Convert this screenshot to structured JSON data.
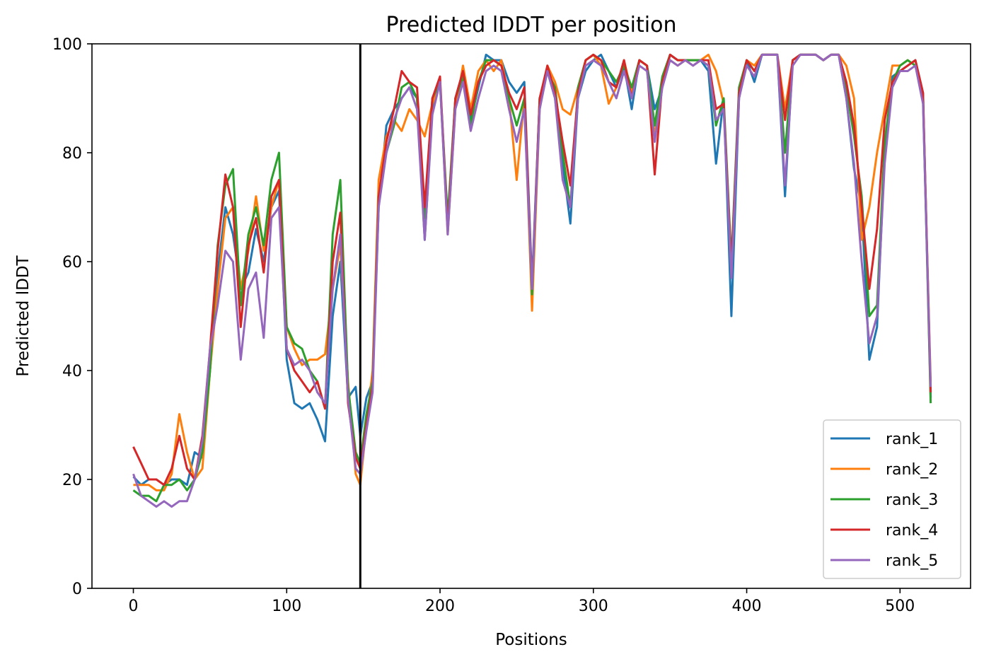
{
  "chart_data": {
    "type": "line",
    "title": "Predicted lDDT per position",
    "xlabel": "Positions",
    "ylabel": "Predicted lDDT",
    "xlim": [
      -27,
      546
    ],
    "ylim": [
      0,
      100
    ],
    "xticks": [
      0,
      100,
      200,
      300,
      400,
      500
    ],
    "yticks": [
      0,
      20,
      40,
      60,
      80,
      100
    ],
    "vline": 148,
    "legend_loc": "lower-right",
    "grid": false,
    "series": [
      {
        "name": "rank_1",
        "color": "#1f77b4",
        "x": [
          0,
          5,
          10,
          15,
          20,
          25,
          30,
          35,
          40,
          45,
          50,
          55,
          60,
          65,
          70,
          75,
          80,
          85,
          90,
          95,
          100,
          105,
          110,
          115,
          120,
          125,
          130,
          135,
          140,
          145,
          148,
          152,
          156,
          160,
          165,
          170,
          175,
          180,
          185,
          190,
          195,
          200,
          205,
          210,
          215,
          220,
          225,
          230,
          235,
          240,
          245,
          250,
          255,
          260,
          265,
          270,
          275,
          280,
          285,
          290,
          295,
          300,
          305,
          310,
          315,
          320,
          325,
          330,
          335,
          340,
          345,
          350,
          355,
          360,
          365,
          370,
          375,
          380,
          385,
          390,
          395,
          400,
          405,
          410,
          415,
          420,
          425,
          430,
          435,
          440,
          445,
          450,
          455,
          460,
          465,
          470,
          475,
          480,
          485,
          490,
          495,
          500,
          505,
          510,
          515,
          520
        ],
        "values": [
          20.5,
          19,
          20,
          20,
          19,
          20,
          20,
          19,
          25,
          24,
          40,
          58,
          70,
          65,
          55,
          58,
          66,
          60,
          70,
          73,
          42,
          34,
          33,
          34,
          31,
          27,
          50,
          60,
          35,
          37,
          28,
          35,
          38,
          70,
          85,
          88,
          90,
          92,
          90,
          64,
          88,
          93,
          66,
          90,
          95,
          86,
          92,
          98,
          97,
          97,
          93,
          91,
          93,
          56,
          90,
          95,
          90,
          78,
          67,
          90,
          95,
          97,
          98,
          95,
          92,
          96,
          88,
          97,
          96,
          88,
          92,
          98,
          97,
          97,
          97,
          97,
          95,
          78,
          90,
          50,
          90,
          97,
          93,
          98,
          98,
          98,
          72,
          97,
          98,
          98,
          98,
          97,
          98,
          98,
          90,
          77,
          70,
          42,
          48,
          80,
          94,
          95,
          96,
          97,
          91,
          35
        ]
      },
      {
        "name": "rank_2",
        "color": "#ff7f0e",
        "x": [
          0,
          5,
          10,
          15,
          20,
          25,
          30,
          35,
          40,
          45,
          50,
          55,
          60,
          65,
          70,
          75,
          80,
          85,
          90,
          95,
          100,
          105,
          110,
          115,
          120,
          125,
          130,
          135,
          140,
          145,
          148,
          152,
          156,
          160,
          165,
          170,
          175,
          180,
          185,
          190,
          195,
          200,
          205,
          210,
          215,
          220,
          225,
          230,
          235,
          240,
          245,
          250,
          255,
          260,
          265,
          270,
          275,
          280,
          285,
          290,
          295,
          300,
          305,
          310,
          315,
          320,
          325,
          330,
          335,
          340,
          345,
          350,
          355,
          360,
          365,
          370,
          375,
          380,
          385,
          390,
          395,
          400,
          405,
          410,
          415,
          420,
          425,
          430,
          435,
          440,
          445,
          450,
          455,
          460,
          465,
          470,
          475,
          480,
          485,
          490,
          495,
          500,
          505,
          510,
          515,
          520
        ],
        "values": [
          19,
          19,
          19,
          18,
          18,
          21,
          32,
          25,
          20,
          22,
          40,
          55,
          68,
          70,
          55,
          62,
          72,
          62,
          70,
          75,
          48,
          44,
          41,
          42,
          42,
          43,
          55,
          63,
          38,
          21,
          19,
          30,
          40,
          75,
          83,
          86,
          84,
          88,
          86,
          83,
          89,
          93,
          65,
          88,
          96,
          88,
          95,
          97,
          95,
          97,
          90,
          75,
          90,
          51,
          88,
          96,
          93,
          88,
          87,
          92,
          97,
          98,
          96,
          89,
          92,
          97,
          91,
          97,
          96,
          83,
          93,
          97,
          96,
          97,
          97,
          97,
          98,
          95,
          89,
          58,
          90,
          97,
          96,
          98,
          98,
          98,
          88,
          97,
          98,
          98,
          98,
          97,
          98,
          98,
          96,
          90,
          64,
          70,
          80,
          88,
          96,
          96,
          97,
          96,
          90,
          38
        ]
      },
      {
        "name": "rank_3",
        "color": "#2ca02c",
        "x": [
          0,
          5,
          10,
          15,
          20,
          25,
          30,
          35,
          40,
          45,
          50,
          55,
          60,
          65,
          70,
          75,
          80,
          85,
          90,
          95,
          100,
          105,
          110,
          115,
          120,
          125,
          130,
          135,
          140,
          145,
          148,
          152,
          156,
          160,
          165,
          170,
          175,
          180,
          185,
          190,
          195,
          200,
          205,
          210,
          215,
          220,
          225,
          230,
          235,
          240,
          245,
          250,
          255,
          260,
          265,
          270,
          275,
          280,
          285,
          290,
          295,
          300,
          305,
          310,
          315,
          320,
          325,
          330,
          335,
          340,
          345,
          350,
          355,
          360,
          365,
          370,
          375,
          380,
          385,
          390,
          395,
          400,
          405,
          410,
          415,
          420,
          425,
          430,
          435,
          440,
          445,
          450,
          455,
          460,
          465,
          470,
          475,
          480,
          485,
          490,
          495,
          500,
          505,
          510,
          515,
          520
        ],
        "values": [
          18,
          17,
          17,
          16,
          19,
          19,
          20,
          18,
          20,
          25,
          40,
          63,
          74,
          77,
          52,
          65,
          70,
          63,
          75,
          80,
          48,
          45,
          44,
          40,
          38,
          33,
          65,
          75,
          37,
          25,
          23,
          32,
          38,
          72,
          80,
          85,
          92,
          93,
          90,
          68,
          90,
          93,
          68,
          90,
          94,
          85,
          93,
          97,
          97,
          96,
          90,
          85,
          90,
          54,
          90,
          95,
          92,
          80,
          70,
          92,
          97,
          98,
          97,
          95,
          93,
          96,
          92,
          97,
          96,
          85,
          94,
          98,
          97,
          97,
          97,
          97,
          96,
          85,
          90,
          60,
          92,
          97,
          95,
          98,
          98,
          98,
          80,
          97,
          98,
          98,
          98,
          97,
          98,
          98,
          92,
          83,
          72,
          50,
          52,
          82,
          93,
          96,
          97,
          96,
          90,
          34
        ]
      },
      {
        "name": "rank_4",
        "color": "#d62728",
        "x": [
          0,
          5,
          10,
          15,
          20,
          25,
          30,
          35,
          40,
          45,
          50,
          55,
          60,
          65,
          70,
          75,
          80,
          85,
          90,
          95,
          100,
          105,
          110,
          115,
          120,
          125,
          130,
          135,
          140,
          145,
          148,
          152,
          156,
          160,
          165,
          170,
          175,
          180,
          185,
          190,
          195,
          200,
          205,
          210,
          215,
          220,
          225,
          230,
          235,
          240,
          245,
          250,
          255,
          260,
          265,
          270,
          275,
          280,
          285,
          290,
          295,
          300,
          305,
          310,
          315,
          320,
          325,
          330,
          335,
          340,
          345,
          350,
          355,
          360,
          365,
          370,
          375,
          380,
          385,
          390,
          395,
          400,
          405,
          410,
          415,
          420,
          425,
          430,
          435,
          440,
          445,
          450,
          455,
          460,
          465,
          470,
          475,
          480,
          485,
          490,
          495,
          500,
          505,
          510,
          515,
          520
        ],
        "values": [
          26,
          23,
          20,
          20,
          19,
          22,
          28,
          22,
          20,
          28,
          44,
          62,
          76,
          70,
          48,
          63,
          68,
          58,
          72,
          75,
          44,
          40,
          38,
          36,
          38,
          33,
          60,
          69,
          34,
          24,
          22,
          30,
          37,
          72,
          82,
          88,
          95,
          93,
          92,
          70,
          90,
          94,
          66,
          90,
          95,
          87,
          93,
          96,
          97,
          96,
          91,
          88,
          92,
          55,
          90,
          96,
          91,
          82,
          74,
          91,
          97,
          98,
          97,
          93,
          92,
          97,
          90,
          97,
          96,
          76,
          93,
          98,
          97,
          97,
          96,
          97,
          97,
          88,
          89,
          59,
          91,
          97,
          95,
          98,
          98,
          98,
          86,
          97,
          98,
          98,
          98,
          97,
          98,
          98,
          93,
          85,
          70,
          55,
          66,
          86,
          93,
          95,
          96,
          97,
          91,
          36
        ]
      },
      {
        "name": "rank_5",
        "color": "#9467bd",
        "x": [
          0,
          5,
          10,
          15,
          20,
          25,
          30,
          35,
          40,
          45,
          50,
          55,
          60,
          65,
          70,
          75,
          80,
          85,
          90,
          95,
          100,
          105,
          110,
          115,
          120,
          125,
          130,
          135,
          140,
          145,
          148,
          152,
          156,
          160,
          165,
          170,
          175,
          180,
          185,
          190,
          195,
          200,
          205,
          210,
          215,
          220,
          225,
          230,
          235,
          240,
          245,
          250,
          255,
          260,
          265,
          270,
          275,
          280,
          285,
          290,
          295,
          300,
          305,
          310,
          315,
          320,
          325,
          330,
          335,
          340,
          345,
          350,
          355,
          360,
          365,
          370,
          375,
          380,
          385,
          390,
          395,
          400,
          405,
          410,
          415,
          420,
          425,
          430,
          435,
          440,
          445,
          450,
          455,
          460,
          465,
          470,
          475,
          480,
          485,
          490,
          495,
          500,
          505,
          510,
          515,
          520
        ],
        "values": [
          21,
          17,
          16,
          15,
          16,
          15,
          16,
          16,
          20,
          27,
          44,
          52,
          62,
          60,
          42,
          55,
          58,
          46,
          68,
          70,
          44,
          41,
          42,
          40,
          36,
          34,
          55,
          65,
          35,
          22,
          21,
          29,
          36,
          70,
          80,
          86,
          90,
          92,
          88,
          64,
          87,
          93,
          65,
          88,
          93,
          84,
          90,
          95,
          96,
          95,
          88,
          82,
          88,
          55,
          88,
          95,
          90,
          75,
          70,
          90,
          96,
          97,
          96,
          93,
          90,
          95,
          90,
          96,
          95,
          82,
          92,
          97,
          96,
          97,
          96,
          97,
          96,
          86,
          88,
          57,
          90,
          96,
          94,
          98,
          98,
          98,
          74,
          96,
          98,
          98,
          98,
          97,
          98,
          98,
          90,
          78,
          60,
          45,
          50,
          78,
          92,
          95,
          95,
          96,
          89,
          37
        ]
      }
    ]
  }
}
